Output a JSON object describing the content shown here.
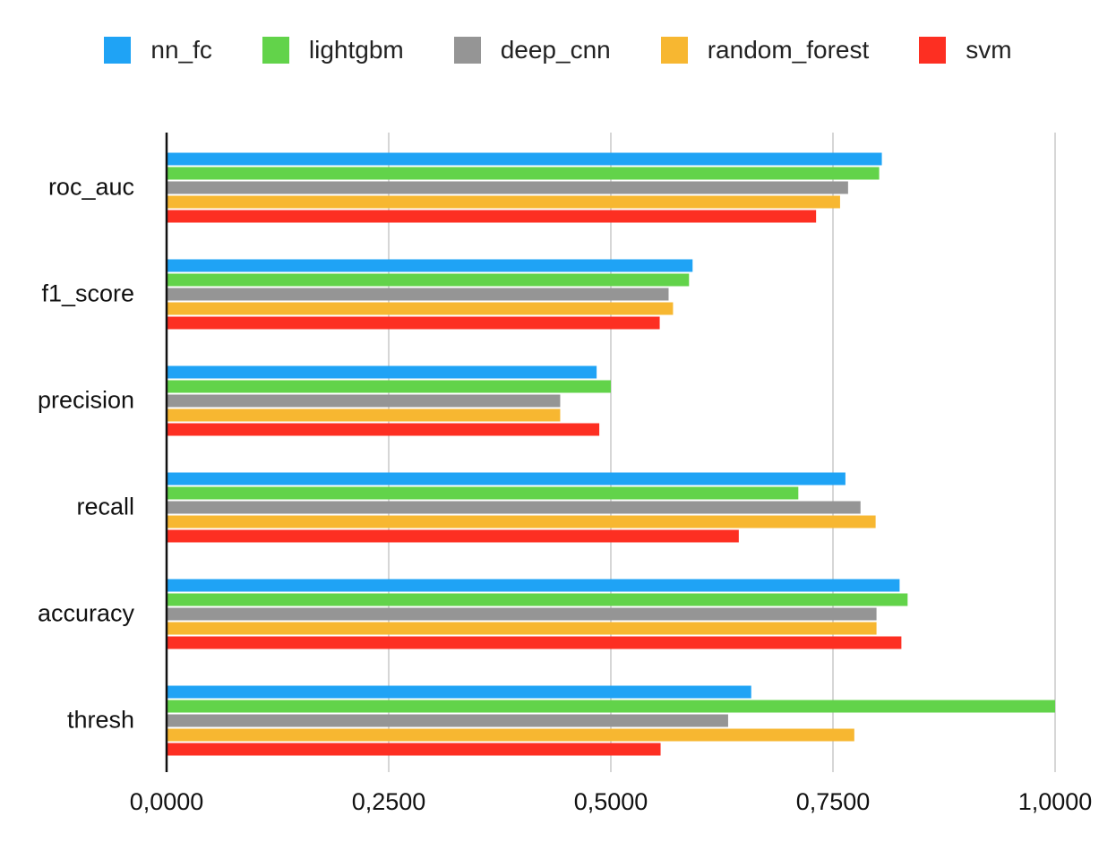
{
  "chart_data": {
    "type": "bar",
    "orientation": "horizontal",
    "categories": [
      "roc_auc",
      "f1_score",
      "precision",
      "recall",
      "accuracy",
      "thresh"
    ],
    "series": [
      {
        "name": "nn_fc",
        "color": "#1fa3f5",
        "values": [
          0.805,
          0.592,
          0.484,
          0.764,
          0.825,
          0.658
        ]
      },
      {
        "name": "lightgbm",
        "color": "#62d34a",
        "values": [
          0.802,
          0.588,
          0.5,
          0.711,
          0.834,
          1.0
        ]
      },
      {
        "name": "deep_cnn",
        "color": "#959595",
        "values": [
          0.767,
          0.565,
          0.443,
          0.781,
          0.799,
          0.632
        ]
      },
      {
        "name": "random_forest",
        "color": "#f7b731",
        "values": [
          0.758,
          0.57,
          0.443,
          0.798,
          0.799,
          0.774
        ]
      },
      {
        "name": "svm",
        "color": "#fd2f22",
        "values": [
          0.731,
          0.555,
          0.487,
          0.644,
          0.827,
          0.556
        ]
      }
    ],
    "xlim": [
      0,
      1
    ],
    "xticks": [
      "0,0000",
      "0,2500",
      "0,5000",
      "0,7500",
      "1,0000"
    ],
    "xtick_values": [
      0,
      0.25,
      0.5,
      0.75,
      1.0
    ],
    "grid": true,
    "legend_position": "top",
    "title": "",
    "xlabel": "",
    "ylabel": ""
  }
}
